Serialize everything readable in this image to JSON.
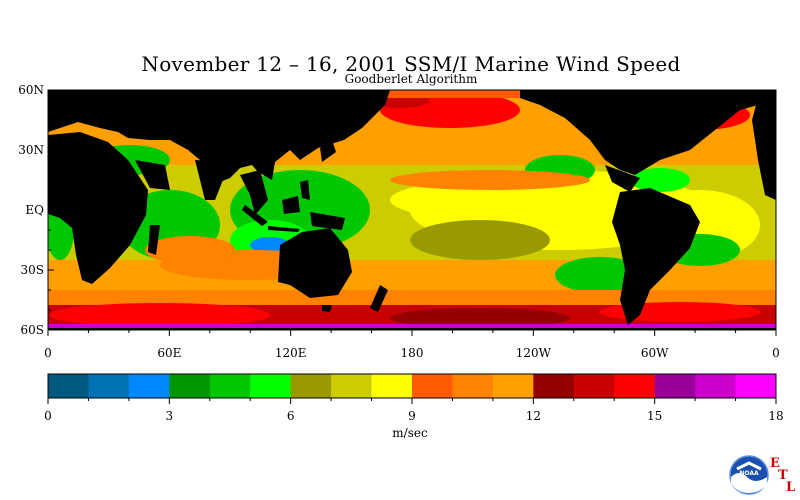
{
  "title": "November 12 – 16, 2001 SSM/I Marine Wind Speed",
  "subtitle": "Goodberlet Algorithm",
  "map": {
    "lat_labels": [
      "60N",
      "30N",
      "EQ",
      "30S",
      "60S"
    ],
    "lon_labels": [
      "0",
      "60E",
      "120E",
      "180",
      "120W",
      "60W",
      "0"
    ],
    "land_color": "#000000"
  },
  "legend": {
    "colors": [
      "#005a80",
      "#0073b4",
      "#0088ff",
      "#009600",
      "#00c800",
      "#00ff00",
      "#999900",
      "#cccc00",
      "#ffff00",
      "#ff5a00",
      "#ff8200",
      "#ffa000",
      "#960000",
      "#c80000",
      "#ff0000",
      "#990099",
      "#cc00cc",
      "#ff00ff"
    ],
    "tick_labels": [
      "0",
      "3",
      "6",
      "9",
      "12",
      "15",
      "18"
    ],
    "unit": "m/sec"
  },
  "logo": {
    "badge": "NOAA",
    "letters": [
      "E",
      "T",
      "L"
    ],
    "name": "noaa-etl-logo"
  }
}
